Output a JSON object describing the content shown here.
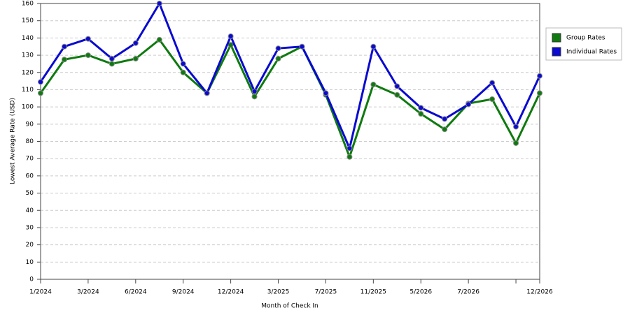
{
  "chart_data": {
    "type": "line",
    "x_label": "Month of Check In",
    "y_label": "Lowest Average Rate (USD)",
    "categories": [
      "1/2024",
      null,
      "3/2024",
      null,
      "6/2024",
      null,
      "9/2024",
      null,
      "12/2024",
      null,
      "3/2025",
      null,
      "7/2025",
      null,
      "11/2025",
      null,
      "5/2026",
      null,
      "7/2026",
      null,
      null,
      "12/2026"
    ],
    "series": [
      {
        "name": "Group Rates",
        "color": "#0f7a0f",
        "values": [
          108,
          127.5,
          130,
          125,
          128,
          139,
          120,
          108,
          136,
          106,
          128,
          135,
          107,
          71,
          113,
          107,
          96,
          87,
          102,
          104.5,
          79,
          108
        ]
      },
      {
        "name": "Individual Rates",
        "color": "#0a0ad0",
        "values": [
          114.5,
          135,
          139.5,
          128,
          137,
          160,
          125,
          108,
          141,
          109,
          134,
          135,
          108,
          76,
          135,
          112,
          99.5,
          93,
          101.5,
          114,
          88.5,
          118
        ]
      }
    ],
    "ylim": [
      0,
      160
    ],
    "yticks": [
      0,
      10,
      20,
      30,
      40,
      50,
      60,
      70,
      80,
      90,
      100,
      110,
      120,
      130,
      140,
      150,
      160
    ],
    "grid": true,
    "legend": "right"
  }
}
